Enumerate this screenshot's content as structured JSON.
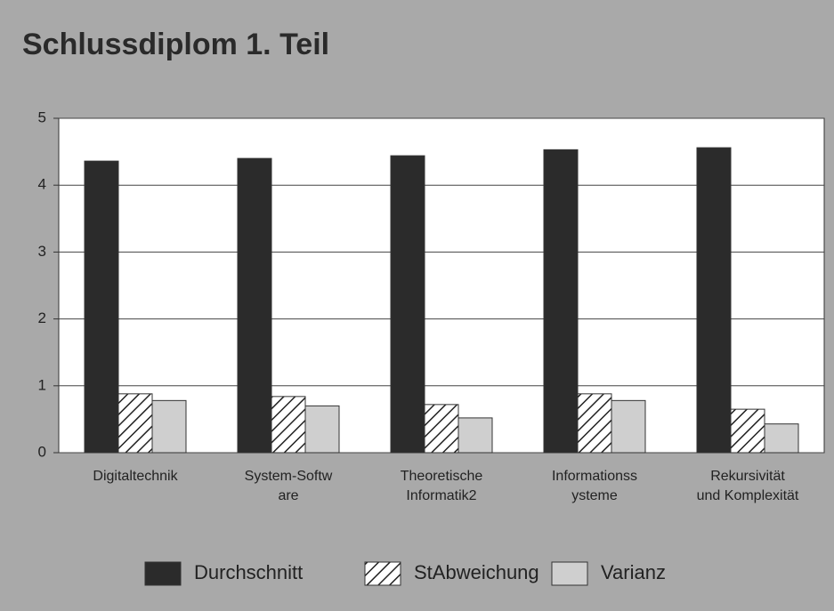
{
  "chart_data": {
    "type": "bar",
    "title": "Schlussdiplom 1. Teil",
    "categories": [
      "Digitaltechnik",
      "System-Softw\nare",
      "Theoretische\nInformatik2",
      "Informationss\nysteme",
      "Rekursivität\nund Komplexität"
    ],
    "series": [
      {
        "name": "Durchschnitt",
        "color": "#2b2b2b",
        "values": [
          4.36,
          4.4,
          4.44,
          4.53,
          4.56
        ]
      },
      {
        "name": "StAbweichung",
        "color": "#ffffff",
        "pattern": "hatch",
        "values": [
          0.88,
          0.84,
          0.72,
          0.88,
          0.65
        ]
      },
      {
        "name": "Varianz",
        "color": "#cfcfcf",
        "values": [
          0.78,
          0.7,
          0.52,
          0.78,
          0.43
        ]
      }
    ],
    "ylim": [
      0,
      5
    ],
    "yticks": [
      0,
      1,
      2,
      3,
      4,
      5
    ],
    "grid": true,
    "legend": "bottom"
  }
}
